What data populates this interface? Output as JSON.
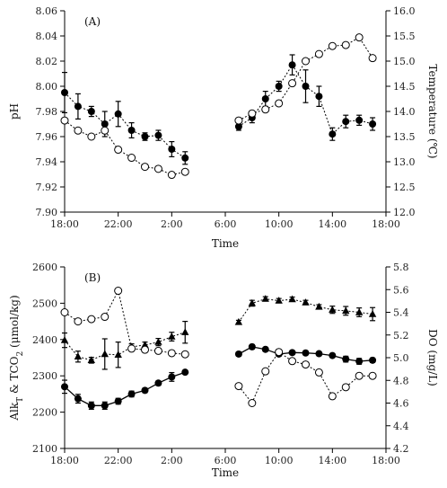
{
  "chart_data": [
    {
      "type": "line",
      "panel_label": "(A)",
      "xlabel": "Time",
      "ylabel": "pH",
      "y2label": "Temperature (℃)",
      "x_ticks": [
        "18:00",
        "22:00",
        "2:00",
        "6:00",
        "10:00",
        "14:00",
        "18:00"
      ],
      "ylim": [
        7.9,
        8.06
      ],
      "y_ticks": [
        "7.90",
        "7.92",
        "7.94",
        "7.96",
        "7.98",
        "8.00",
        "8.02",
        "8.04",
        "8.06"
      ],
      "y2lim": [
        12.0,
        16.0
      ],
      "y2_ticks": [
        "12.0",
        "12.5",
        "13.0",
        "13.5",
        "14.0",
        "14.5",
        "15.0",
        "15.5",
        "16.0"
      ],
      "series": [
        {
          "axis": "left",
          "marker": "filled-circle",
          "line": "dotted",
          "x": [
            18,
            19,
            20,
            21,
            22,
            23,
            24,
            25,
            26,
            27,
            31,
            32,
            33,
            34,
            35,
            36,
            37,
            38,
            39,
            40,
            41
          ],
          "y": [
            7.995,
            7.984,
            7.98,
            7.97,
            7.978,
            7.965,
            7.96,
            7.961,
            7.95,
            7.943,
            7.968,
            7.975,
            7.99,
            8.0,
            8.017,
            8.0,
            7.992,
            7.962,
            7.972,
            7.973,
            7.97
          ],
          "err": [
            0.016,
            0.01,
            0.004,
            0.01,
            0.01,
            0.006,
            0.003,
            0.004,
            0.006,
            0.005,
            0.003,
            0.004,
            0.006,
            0.004,
            0.008,
            0.013,
            0.008,
            0.005,
            0.005,
            0.004,
            0.005
          ]
        },
        {
          "axis": "right",
          "marker": "open-circle",
          "line": "dotted",
          "x": [
            18,
            19,
            20,
            21,
            22,
            23,
            24,
            25,
            26,
            27,
            31,
            32,
            33,
            34,
            35,
            36,
            37,
            38,
            39,
            40,
            41
          ],
          "y": [
            13.82,
            13.62,
            13.5,
            13.62,
            13.24,
            13.08,
            12.9,
            12.86,
            12.74,
            12.8,
            13.82,
            13.96,
            14.04,
            14.16,
            14.56,
            15.0,
            15.14,
            15.3,
            15.32,
            15.47,
            15.06
          ]
        }
      ]
    },
    {
      "type": "line",
      "panel_label": "(B)",
      "xlabel": "Time",
      "ylabel": "Alk_T & TCO_2 (μmol/kg)",
      "ylabel_parts": [
        "Alk",
        "T",
        " & TCO",
        "2",
        " (μmol/kg)"
      ],
      "y2label": "DO (mg/L)",
      "x_ticks": [
        "18:00",
        "22:00",
        "2:00",
        "6:00",
        "10:00",
        "14:00",
        "18:00"
      ],
      "ylim": [
        2100,
        2600
      ],
      "y_ticks": [
        "2100",
        "2200",
        "2300",
        "2400",
        "2500",
        "2600"
      ],
      "y2lim": [
        4.2,
        5.8
      ],
      "y2_ticks": [
        "4.2",
        "4.4",
        "4.6",
        "4.8",
        "5.0",
        "5.2",
        "5.4",
        "5.6",
        "5.8"
      ],
      "series": [
        {
          "axis": "left",
          "marker": "filled-triangle",
          "line": "dotted",
          "x": [
            18,
            19,
            20,
            21,
            22,
            23,
            24,
            25,
            26,
            27,
            31,
            32,
            33,
            34,
            35,
            36,
            37,
            38,
            39,
            40,
            41
          ],
          "y": [
            2398,
            2353,
            2343,
            2360,
            2358,
            2380,
            2385,
            2393,
            2408,
            2420,
            2448,
            2500,
            2512,
            2507,
            2511,
            2502,
            2490,
            2482,
            2479,
            2475,
            2470
          ],
          "err": [
            20,
            15,
            8,
            42,
            35,
            8,
            8,
            10,
            12,
            30,
            5,
            8,
            6,
            6,
            6,
            6,
            6,
            10,
            12,
            12,
            18
          ]
        },
        {
          "axis": "left",
          "marker": "filled-circle",
          "line": "solid",
          "x": [
            18,
            19,
            20,
            21,
            22,
            23,
            24,
            25,
            26,
            27,
            31,
            32,
            33,
            34,
            35,
            36,
            37,
            38,
            39,
            40,
            41
          ],
          "y": [
            2270,
            2237,
            2218,
            2218,
            2230,
            2250,
            2260,
            2280,
            2297,
            2310,
            2360,
            2380,
            2373,
            2360,
            2364,
            2363,
            2361,
            2356,
            2346,
            2340,
            2343
          ],
          "err": [
            18,
            12,
            10,
            10,
            8,
            8,
            6,
            6,
            12,
            5,
            6,
            6,
            5,
            6,
            5,
            5,
            5,
            5,
            8,
            8,
            6
          ]
        },
        {
          "axis": "right",
          "marker": "open-circle",
          "line": "dotted",
          "x": [
            18,
            19,
            20,
            21,
            22,
            23,
            24,
            25,
            26,
            27,
            31,
            32,
            33,
            34,
            35,
            36,
            37,
            38,
            39,
            40,
            41
          ],
          "y": [
            5.4,
            5.32,
            5.34,
            5.36,
            5.59,
            5.08,
            5.07,
            5.06,
            5.04,
            5.03,
            4.75,
            4.6,
            4.88,
            5.05,
            4.97,
            4.94,
            4.87,
            4.66,
            4.74,
            4.84,
            4.84
          ]
        }
      ]
    }
  ]
}
